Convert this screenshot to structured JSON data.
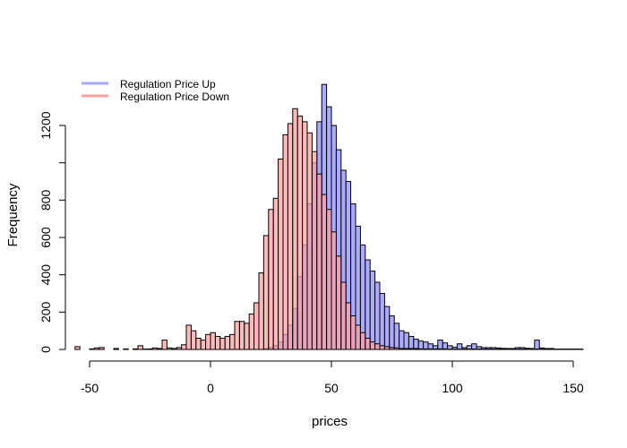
{
  "chart_data": {
    "type": "histogram",
    "title": "",
    "xlabel": "prices",
    "ylabel": "Frequency",
    "xlim": [
      -56,
      156
    ],
    "ylim": [
      0,
      1430
    ],
    "x_ticks": [
      -50,
      0,
      50,
      100,
      150
    ],
    "y_ticks": [
      0,
      200,
      400,
      600,
      800,
      1000,
      1200
    ],
    "y_tick_labels": [
      "0",
      "200",
      "400",
      "600",
      "800",
      "",
      "1200"
    ],
    "bin_width": 2,
    "bin_start": -56,
    "bin_count": 105,
    "grid": false,
    "legend_position": "top-left",
    "series": [
      {
        "name": "Regulation Price Up",
        "color": "#a8a8ff",
        "values": [
          0,
          0,
          0,
          0,
          0,
          0,
          0,
          0,
          0,
          0,
          0,
          0,
          0,
          0,
          0,
          0,
          0,
          0,
          0,
          0,
          0,
          0,
          0,
          0,
          0,
          0,
          0,
          0,
          0,
          0,
          0,
          0,
          0,
          0,
          0,
          0,
          0,
          0,
          0,
          5,
          10,
          20,
          40,
          80,
          130,
          220,
          390,
          560,
          780,
          1000,
          1220,
          1420,
          1300,
          1200,
          1070,
          960,
          900,
          780,
          660,
          560,
          480,
          420,
          360,
          300,
          230,
          180,
          140,
          100,
          90,
          70,
          55,
          45,
          40,
          30,
          20,
          50,
          35,
          20,
          12,
          30,
          10,
          20,
          30,
          15,
          10,
          10,
          10,
          8,
          6,
          5,
          5,
          10,
          10,
          6,
          5,
          50,
          8,
          5,
          5,
          0,
          0,
          0,
          0,
          0,
          0
        ]
      },
      {
        "name": "Regulation Price Down",
        "color": "#ffa0a0",
        "values": [
          15,
          0,
          0,
          3,
          8,
          10,
          0,
          0,
          5,
          0,
          3,
          0,
          3,
          20,
          2,
          3,
          8,
          5,
          50,
          8,
          5,
          10,
          25,
          130,
          100,
          60,
          50,
          80,
          90,
          70,
          60,
          70,
          80,
          150,
          150,
          140,
          190,
          250,
          410,
          610,
          750,
          810,
          1020,
          1150,
          1210,
          1290,
          1250,
          1220,
          1160,
          1060,
          940,
          830,
          750,
          630,
          500,
          360,
          250,
          180,
          130,
          90,
          60,
          40,
          30,
          20,
          15,
          10,
          8,
          5,
          5,
          5,
          5,
          3,
          3,
          3,
          3,
          3,
          3,
          2,
          2,
          2,
          2,
          2,
          2,
          2,
          2,
          2,
          2,
          2,
          2,
          2,
          2,
          2,
          2,
          2,
          2,
          2,
          2,
          2,
          2,
          2,
          2,
          2,
          2,
          2,
          2
        ]
      }
    ]
  }
}
